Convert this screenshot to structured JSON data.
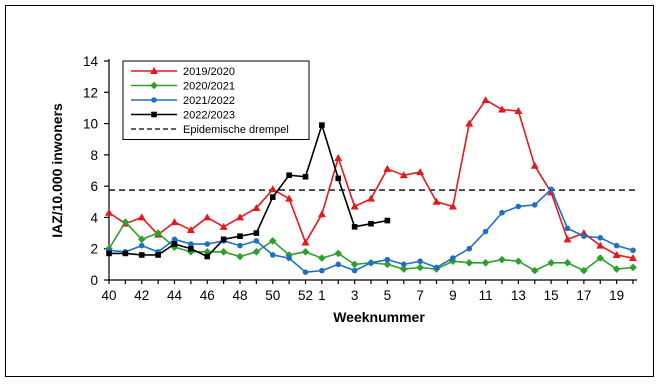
{
  "chart_data": {
    "type": "line",
    "xlabel": "Weeknummer",
    "ylabel": "IAZ/10.000 inwoners",
    "ylim": [
      0,
      14
    ],
    "yticks": [
      0,
      2,
      4,
      6,
      8,
      10,
      12,
      14
    ],
    "categories": [
      "40",
      "41",
      "42",
      "43",
      "44",
      "45",
      "46",
      "47",
      "48",
      "49",
      "50",
      "51",
      "52",
      "1",
      "2",
      "3",
      "4",
      "5",
      "6",
      "7",
      "8",
      "9",
      "10",
      "11",
      "12",
      "13",
      "14",
      "15",
      "16",
      "17",
      "18",
      "19",
      "20"
    ],
    "tick_labels": [
      "40",
      "42",
      "44",
      "46",
      "48",
      "50",
      "52",
      "1",
      "3",
      "5",
      "7",
      "9",
      "11",
      "13",
      "15",
      "17",
      "19"
    ],
    "grid": false,
    "legend_position": "top-left",
    "series": [
      {
        "name": "2019/2020",
        "color": "#e31a1c",
        "marker": "triangle",
        "values": [
          4.3,
          3.6,
          4.0,
          2.9,
          3.7,
          3.2,
          4.0,
          3.4,
          4.0,
          4.6,
          5.8,
          5.2,
          2.4,
          4.2,
          7.8,
          4.7,
          5.2,
          7.1,
          6.7,
          6.9,
          5.0,
          4.7,
          10.0,
          11.5,
          10.9,
          10.8,
          7.3,
          5.6,
          2.6,
          3.0,
          2.2,
          1.6,
          1.4
        ]
      },
      {
        "name": "2020/2021",
        "color": "#2ca02c",
        "marker": "diamond",
        "values": [
          2.0,
          3.7,
          2.6,
          3.0,
          2.1,
          1.8,
          1.8,
          1.8,
          1.5,
          1.8,
          2.5,
          1.6,
          1.8,
          1.4,
          1.7,
          1.0,
          1.1,
          1.0,
          0.7,
          0.8,
          0.7,
          1.2,
          1.1,
          1.1,
          1.3,
          1.2,
          0.6,
          1.1,
          1.1,
          0.6,
          1.4,
          0.7,
          0.8
        ]
      },
      {
        "name": "2021/2022",
        "color": "#1f6fc5",
        "marker": "circle",
        "values": [
          1.9,
          1.8,
          2.2,
          1.8,
          2.6,
          2.3,
          2.3,
          2.5,
          2.2,
          2.5,
          1.6,
          1.4,
          0.5,
          0.6,
          1.0,
          0.6,
          1.1,
          1.3,
          1.0,
          1.2,
          0.8,
          1.4,
          2.0,
          3.1,
          4.3,
          4.7,
          4.8,
          5.8,
          3.3,
          2.8,
          2.7,
          2.2,
          1.9
        ]
      },
      {
        "name": "2022/2023",
        "color": "#000000",
        "marker": "square",
        "values": [
          1.7,
          1.7,
          1.6,
          1.6,
          2.3,
          2.0,
          1.5,
          2.6,
          2.8,
          3.0,
          5.3,
          6.7,
          6.6,
          9.9,
          6.5,
          3.4,
          3.6,
          3.8,
          null,
          null,
          null,
          null,
          null,
          null,
          null,
          null,
          null,
          null,
          null,
          null,
          null,
          null,
          null
        ]
      }
    ],
    "threshold": {
      "name": "Epidemische drempel",
      "value": 5.75,
      "style": "dashed",
      "color": "#000000"
    }
  }
}
